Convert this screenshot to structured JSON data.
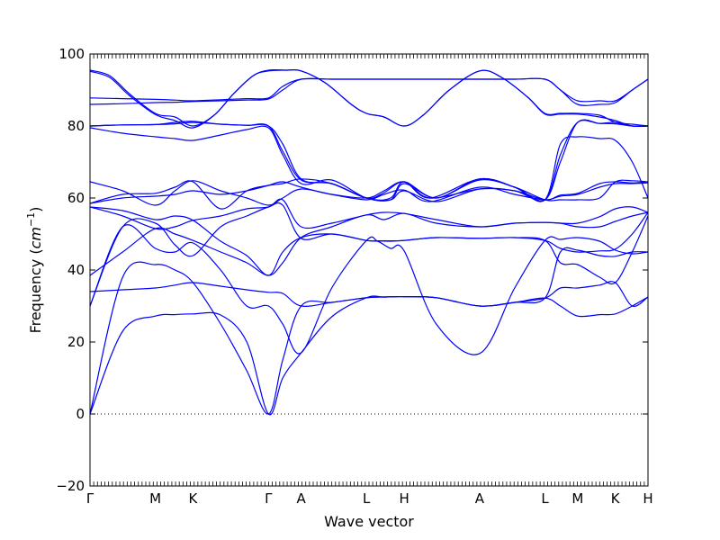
{
  "chart_data": {
    "type": "line",
    "xlabel": "Wave vector",
    "ylabel": "Frequency",
    "ylabel_unit": "cm",
    "ylabel_unit_exp": "−1",
    "ylim": [
      -20,
      100
    ],
    "yticks": [
      "−20",
      "0",
      "20",
      "40",
      "60",
      "80",
      "100"
    ],
    "ytick_values": [
      -20,
      0,
      20,
      40,
      60,
      80,
      100
    ],
    "zero_line": true,
    "high_symmetry_points": [
      {
        "label": "Γ",
        "x": 0
      },
      {
        "label": "M",
        "x": 1.0
      },
      {
        "label": "K",
        "x": 1.577
      },
      {
        "label": "Γ",
        "x": 2.732
      },
      {
        "label": "A",
        "x": 3.232
      },
      {
        "label": "L",
        "x": 4.232
      },
      {
        "label": "H",
        "x": 4.809
      },
      {
        "label": "A",
        "x": 5.964
      },
      {
        "label": "L",
        "x": 6.964
      },
      {
        "label": "M",
        "x": 7.464
      },
      {
        "label": "K",
        "x": 8.041
      },
      {
        "label": "H",
        "x": 8.541
      }
    ],
    "series": [
      {
        "x": [
          0,
          0.5,
          1.0,
          1.3,
          1.577,
          2.0,
          2.4,
          2.732,
          2.95,
          3.232,
          3.7,
          4.232,
          4.5,
          4.809,
          5.3,
          5.964,
          6.5,
          6.964,
          7.2,
          7.464,
          7.8,
          8.041,
          8.3,
          8.541
        ],
        "y": [
          0,
          23,
          27.2,
          27.6,
          27.8,
          27.5,
          20,
          0,
          10,
          17,
          27,
          32.3,
          32.5,
          32.6,
          32.3,
          30,
          31,
          32.2,
          35,
          35,
          35.8,
          36.5,
          30,
          32.5
        ]
      },
      {
        "x": [
          0,
          0.5,
          1.0,
          1.3,
          1.577,
          2.0,
          2.4,
          2.732,
          2.95,
          3.232,
          3.7,
          4.232,
          4.5,
          4.809,
          5.3,
          5.964,
          6.5,
          6.964,
          7.2,
          7.464,
          7.8,
          8.041,
          8.3,
          8.541
        ],
        "y": [
          0,
          38,
          41.5,
          40,
          36.5,
          25,
          12,
          0,
          15,
          30,
          31,
          32.3,
          32.5,
          32.6,
          32.3,
          30,
          31,
          32.2,
          30,
          27.2,
          27.6,
          27.8,
          30,
          32.5
        ]
      },
      {
        "x": [
          0,
          0.5,
          1.0,
          1.3,
          1.577,
          2.0,
          2.4,
          2.732,
          2.95,
          3.232,
          3.7,
          4.232,
          4.4,
          4.6,
          4.809,
          5.3,
          5.964,
          6.5,
          6.964,
          7.2,
          7.464,
          7.8,
          8.041,
          8.3,
          8.541
        ],
        "y": [
          30,
          52,
          46,
          45,
          47.5,
          40,
          30,
          30,
          25,
          17,
          35,
          48.2,
          48,
          46,
          45.3,
          25,
          16.8,
          35,
          48.2,
          48.5,
          49,
          48,
          45.5,
          44.5,
          45
        ]
      },
      {
        "x": [
          0,
          0.5,
          1.0,
          1.3,
          1.577,
          2.0,
          2.4,
          2.732,
          2.95,
          3.232,
          3.7,
          4.232,
          4.4,
          4.6,
          4.809,
          5.3,
          5.964,
          6.5,
          6.964,
          7.2,
          7.464,
          7.8,
          8.041,
          8.3,
          8.541
        ],
        "y": [
          30,
          52,
          53,
          47,
          44,
          52,
          55,
          57.5,
          58,
          48.8,
          50,
          48.2,
          48.1,
          48,
          48.2,
          49,
          48.8,
          49,
          48.2,
          42,
          41.5,
          38,
          36.5,
          45,
          55
        ]
      },
      {
        "x": [
          0,
          0.5,
          1.0,
          1.3,
          1.577,
          2.0,
          2.4,
          2.732,
          2.95,
          3.232,
          3.7,
          4.232,
          4.5,
          4.809,
          5.3,
          5.964,
          6.5,
          6.964,
          7.2,
          7.464,
          7.8,
          8.041,
          8.3,
          8.541
        ],
        "y": [
          34,
          34.5,
          35,
          35.8,
          36.5,
          35.5,
          34.5,
          33.8,
          33.5,
          30,
          31,
          32.3,
          32.5,
          32.6,
          32.3,
          30,
          31,
          32.2,
          45,
          45.5,
          44,
          43.8,
          45,
          45
        ]
      },
      {
        "x": [
          0,
          0.5,
          1.0,
          1.3,
          1.577,
          2.0,
          2.4,
          2.732,
          2.95,
          3.232,
          3.7,
          4.232,
          4.5,
          4.809,
          5.3,
          5.964,
          6.5,
          6.964,
          7.2,
          7.464,
          7.8,
          8.041,
          8.3,
          8.541
        ],
        "y": [
          38.5,
          45,
          51.5,
          50,
          48.2,
          45,
          42,
          38.5,
          42,
          49,
          52,
          55.3,
          54,
          55.7,
          53,
          52,
          53,
          53.2,
          53,
          53,
          54.8,
          57,
          57.5,
          56
        ]
      },
      {
        "x": [
          0,
          0.5,
          1.0,
          1.3,
          1.577,
          2.0,
          2.4,
          2.732,
          2.95,
          3.232,
          3.7,
          4.232,
          4.5,
          4.809,
          5.3,
          5.964,
          6.5,
          6.964,
          7.2,
          7.464,
          7.8,
          8.041,
          8.3,
          8.541
        ],
        "y": [
          57.5,
          55,
          51.5,
          52,
          53.8,
          55,
          57,
          57.5,
          59.5,
          52,
          53,
          55.3,
          56,
          55.7,
          54,
          52,
          53,
          53.2,
          53,
          52,
          52,
          53.5,
          55,
          56
        ]
      },
      {
        "x": [
          0,
          0.5,
          1.0,
          1.3,
          1.577,
          2.0,
          2.4,
          2.732,
          2.95,
          3.232,
          3.7,
          4.232,
          4.5,
          4.809,
          5.3,
          5.964,
          6.5,
          6.964,
          7.2,
          7.464,
          7.8,
          8.041,
          8.3,
          8.541
        ],
        "y": [
          57.5,
          56.5,
          54,
          55,
          53.8,
          48,
          44,
          38.5,
          45,
          49,
          50,
          48.2,
          48.1,
          48.2,
          49,
          48.8,
          49,
          48.2,
          46,
          45,
          45.3,
          45.8,
          50,
          56
        ]
      },
      {
        "x": [
          0,
          0.5,
          1.0,
          1.3,
          1.577,
          2.0,
          2.4,
          2.732,
          2.95,
          3.232,
          3.7,
          4.232,
          4.5,
          4.809,
          5.2,
          5.964,
          6.5,
          6.964,
          7.2,
          7.464,
          7.8,
          8.041,
          8.3,
          8.541
        ],
        "y": [
          58.5,
          60,
          60.5,
          61,
          62,
          61,
          62,
          63.5,
          64.5,
          63,
          61,
          59.5,
          61,
          62.2,
          59,
          63,
          61,
          59.5,
          60.5,
          61,
          63,
          64,
          64,
          64.2
        ]
      },
      {
        "x": [
          0,
          0.5,
          1.0,
          1.3,
          1.577,
          2.0,
          2.4,
          2.732,
          2.95,
          3.232,
          3.7,
          4.232,
          4.5,
          4.809,
          5.2,
          5.964,
          6.5,
          6.964,
          7.2,
          7.464,
          7.8,
          8.041,
          8.3,
          8.541
        ],
        "y": [
          64.5,
          62,
          58,
          62,
          64.8,
          62,
          60,
          58,
          60,
          62.5,
          61,
          60,
          62,
          64.5,
          60,
          65.3,
          63,
          59.5,
          59.5,
          59.5,
          60,
          64.5,
          64.8,
          64.5
        ]
      },
      {
        "x": [
          0,
          0.5,
          1.0,
          1.3,
          1.577,
          2.0,
          2.4,
          2.732,
          2.95,
          3.232,
          3.7,
          4.232,
          4.5,
          4.809,
          5.2,
          5.964,
          6.5,
          6.964,
          7.2,
          7.464,
          7.8,
          8.041,
          8.3,
          8.541
        ],
        "y": [
          58.5,
          61,
          61.3,
          63,
          64.5,
          57,
          62,
          63.5,
          64,
          65.3,
          64,
          60,
          61.5,
          64.5,
          60,
          62.5,
          62,
          59.5,
          60.8,
          61.3,
          64,
          64.5,
          64.2,
          64.5
        ]
      },
      {
        "x": [
          0,
          0.5,
          1.0,
          1.3,
          1.577,
          2.0,
          2.4,
          2.732,
          2.95,
          3.232,
          3.7,
          4.232,
          4.6,
          4.809,
          5.3,
          5.964,
          6.5,
          6.964,
          7.2,
          7.464,
          7.8,
          8.041,
          8.3,
          8.541
        ],
        "y": [
          79.5,
          78,
          77,
          76.5,
          76,
          77.5,
          79,
          79.5,
          72,
          64,
          65,
          60,
          60,
          64.5,
          60,
          65.3,
          63,
          59.5,
          75,
          77,
          76.5,
          76,
          70,
          60
        ]
      },
      {
        "x": [
          0,
          0.5,
          1.0,
          1.3,
          1.577,
          2.0,
          2.4,
          2.732,
          2.95,
          3.232,
          3.7,
          4.232,
          4.6,
          4.809,
          5.3,
          5.964,
          6.5,
          6.964,
          7.2,
          7.464,
          7.8,
          8.041,
          8.3,
          8.541
        ],
        "y": [
          80,
          80.3,
          80.4,
          80.6,
          81,
          80.5,
          80.2,
          80,
          73,
          65,
          64,
          60,
          59.5,
          62,
          59,
          62.5,
          62,
          59.5,
          70,
          81,
          80.7,
          80.6,
          80,
          80
        ]
      },
      {
        "x": [
          0,
          0.5,
          1.0,
          1.3,
          1.577,
          2.0,
          2.4,
          2.732,
          2.95,
          3.232,
          3.7,
          4.232,
          4.6,
          4.809,
          5.3,
          5.964,
          6.5,
          6.964,
          7.2,
          7.464,
          7.8,
          8.041,
          8.3,
          8.541
        ],
        "y": [
          80,
          80.3,
          80.4,
          81,
          81.3,
          80.5,
          80.2,
          80,
          75,
          65.3,
          64,
          60,
          59.5,
          64,
          60,
          65,
          63,
          59.5,
          72,
          81,
          80.7,
          81,
          80,
          80
        ]
      },
      {
        "x": [
          0,
          0.5,
          1.0,
          1.3,
          1.577,
          2.0,
          2.4,
          2.732,
          2.95,
          3.232,
          3.7,
          4.232,
          4.5,
          4.809,
          5.2,
          5.964,
          6.5,
          6.964,
          7.2,
          7.464,
          7.8,
          8.041,
          8.3,
          8.541
        ],
        "y": [
          86,
          86.2,
          86.5,
          86.6,
          86.8,
          87,
          87.2,
          87.5,
          90,
          93,
          93,
          93,
          93,
          93,
          93,
          93,
          93,
          93,
          90,
          87,
          87,
          87,
          90,
          93
        ]
      },
      {
        "x": [
          0,
          0.5,
          1.0,
          1.3,
          1.577,
          2.0,
          2.4,
          2.732,
          2.95,
          3.232,
          3.7,
          4.232,
          4.5,
          4.809,
          5.2,
          5.964,
          6.5,
          6.964,
          7.2,
          7.464,
          7.8,
          8.041,
          8.3,
          8.541
        ],
        "y": [
          87.8,
          87.6,
          87.4,
          87.2,
          87,
          87.3,
          87.6,
          87.8,
          91,
          93,
          93,
          93,
          93,
          93,
          93,
          93,
          93,
          93,
          90,
          86,
          86,
          86.5,
          90,
          93
        ]
      },
      {
        "x": [
          0,
          0.3,
          0.6,
          1.0,
          1.3,
          1.577,
          1.9,
          2.2,
          2.5,
          2.732,
          3.0,
          3.232,
          3.6,
          4.0,
          4.232,
          4.5,
          4.809,
          5.1,
          5.5,
          5.964,
          6.3,
          6.7,
          6.964,
          7.2,
          7.464,
          7.8,
          8.041,
          8.3,
          8.541
        ],
        "y": [
          95.5,
          94,
          89,
          83.5,
          82.5,
          80,
          83,
          89,
          94,
          95.5,
          95.5,
          95.3,
          92,
          86,
          83.5,
          82.5,
          80,
          83,
          90,
          95.3,
          93.5,
          88,
          83.5,
          83.5,
          83.5,
          83,
          81,
          80.5,
          80
        ]
      },
      {
        "x": [
          0,
          0.3,
          0.6,
          1.0,
          1.3,
          1.577,
          1.9,
          2.2,
          2.5,
          2.732,
          3.0,
          3.232,
          3.6,
          4.0,
          4.232,
          4.5,
          4.809,
          5.1,
          5.5,
          5.964,
          6.3,
          6.7,
          6.964,
          7.2,
          7.464,
          7.8,
          8.041,
          8.3,
          8.541
        ],
        "y": [
          95.2,
          93.5,
          88.5,
          83.2,
          81.5,
          79.5,
          83,
          89,
          94,
          95.3,
          95.5,
          95.3,
          92,
          86,
          83.5,
          82.5,
          80,
          83,
          90,
          95.3,
          93.5,
          88,
          83.3,
          83.3,
          83.3,
          82.5,
          81.5,
          80,
          80
        ]
      }
    ]
  }
}
